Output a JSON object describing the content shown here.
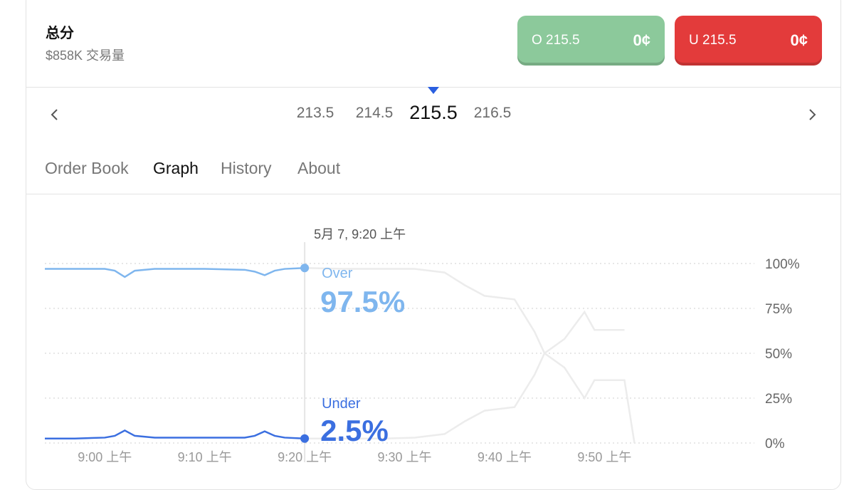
{
  "header": {
    "title": "总分",
    "volume": "$858K 交易量"
  },
  "buttons": [
    {
      "label": "O 215.5",
      "price": "0¢",
      "color": "#8cc99b"
    },
    {
      "label": "U 215.5",
      "price": "0¢",
      "color": "#e33b3b"
    }
  ],
  "lines": {
    "items": [
      "213.5",
      "214.5",
      "215.5",
      "216.5"
    ],
    "selected": 2
  },
  "tabs": {
    "items": [
      "Order Book",
      "Graph",
      "History",
      "About"
    ],
    "active": 1
  },
  "chart_data": {
    "type": "line",
    "x": [
      534,
      537,
      540,
      541,
      542,
      543,
      545,
      550,
      554,
      555,
      556,
      557,
      558,
      560,
      564,
      568,
      571,
      574,
      576,
      578,
      581,
      583,
      584,
      586,
      588,
      589,
      592,
      593
    ],
    "xlim": [
      534,
      605
    ],
    "xticks": [
      {
        "value": 540,
        "label": "9:00 上午"
      },
      {
        "value": 550,
        "label": "9:10 上午"
      },
      {
        "value": 560,
        "label": "9:20 上午"
      },
      {
        "value": 570,
        "label": "9:30 上午"
      },
      {
        "value": 580,
        "label": "9:40 上午"
      },
      {
        "value": 590,
        "label": "9:50 上午"
      }
    ],
    "ylim": [
      0,
      100
    ],
    "yticks": [
      {
        "value": 0,
        "label": "0%"
      },
      {
        "value": 25,
        "label": "25%"
      },
      {
        "value": 50,
        "label": "50%"
      },
      {
        "value": 75,
        "label": "75%"
      },
      {
        "value": 100,
        "label": "100%"
      }
    ],
    "grid": true,
    "series": [
      {
        "name": "Over",
        "color": "#7fb6ee",
        "values": [
          97,
          97,
          97,
          96,
          92.5,
          96,
          97,
          97,
          96.5,
          95.5,
          93.5,
          96,
          97,
          97.5,
          97,
          97,
          97,
          95,
          88,
          82,
          80,
          62,
          50,
          42,
          25,
          35,
          35,
          0
        ]
      },
      {
        "name": "Under",
        "color": "#3b6fe0",
        "values": [
          2.5,
          2.5,
          3,
          4,
          7,
          4,
          3,
          3,
          3,
          4,
          6.5,
          4,
          3,
          2.5,
          2.5,
          2.5,
          3,
          5,
          12,
          18,
          20,
          38,
          50,
          58,
          73,
          63,
          63,
          null
        ]
      }
    ],
    "hover": {
      "index": 13,
      "label": "5月 7, 9:20 上午",
      "value_labels": [
        "97.5%",
        "2.5%"
      ]
    }
  }
}
